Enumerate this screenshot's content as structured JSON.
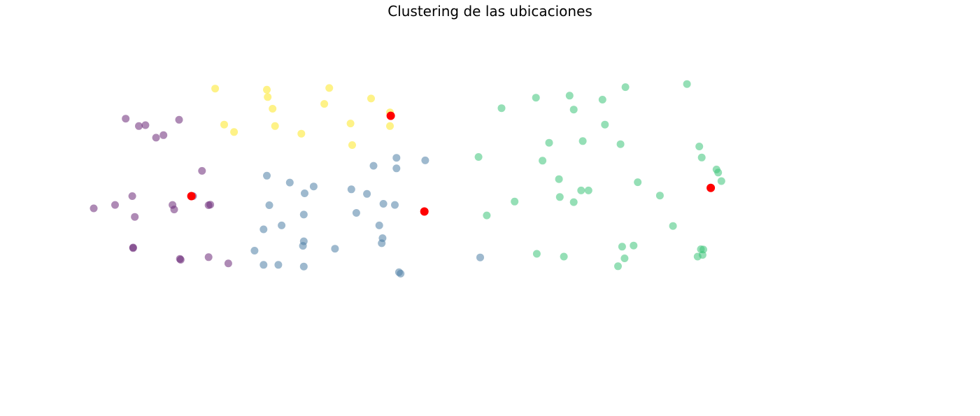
{
  "chart_data": {
    "type": "scatter",
    "title": "Clustering de las ubicaciones",
    "xlabel": "",
    "ylabel": "",
    "axes_visible": false,
    "grid": false,
    "legend": "none",
    "xlim": [
      0,
      100
    ],
    "ylim": [
      0,
      100
    ],
    "series": [
      {
        "cluster": 0,
        "color": "#6b2a78",
        "points": [
          [
            3.9,
            81.6
          ],
          [
            5.5,
            79.0
          ],
          [
            6.3,
            79.3
          ],
          [
            7.6,
            74.9
          ],
          [
            8.5,
            75.8
          ],
          [
            10.4,
            81.2
          ],
          [
            13.2,
            63.2
          ],
          [
            0,
            50.0
          ],
          [
            2.6,
            51.2
          ],
          [
            4.7,
            54.3
          ],
          [
            5.0,
            47.0
          ],
          [
            9.8,
            49.6
          ],
          [
            12.1,
            54.3
          ],
          [
            14.0,
            51.1
          ],
          [
            14.2,
            51.3
          ],
          [
            4.8,
            36.2
          ],
          [
            4.8,
            36.0
          ],
          [
            9.6,
            51.2
          ],
          [
            10.5,
            32.2
          ],
          [
            10.6,
            31.9
          ],
          [
            14.0,
            32.8
          ],
          [
            16.4,
            30.6
          ]
        ]
      },
      {
        "cluster": 1,
        "color": "#fde725",
        "points": [
          [
            14.8,
            92.2
          ],
          [
            15.9,
            79.5
          ],
          [
            17.1,
            76.9
          ],
          [
            21.1,
            91.8
          ],
          [
            21.2,
            89.2
          ],
          [
            21.8,
            85.1
          ],
          [
            22.1,
            79.0
          ],
          [
            25.3,
            76.3
          ],
          [
            28.1,
            86.8
          ],
          [
            28.7,
            92.4
          ],
          [
            31.3,
            79.9
          ],
          [
            31.5,
            72.3
          ],
          [
            33.8,
            88.7
          ],
          [
            36.1,
            83.8
          ],
          [
            36.1,
            79.0
          ]
        ]
      },
      {
        "cluster": 2,
        "color": "#4f7fa5",
        "points": [
          [
            23.9,
            59.1
          ],
          [
            26.8,
            57.7
          ],
          [
            21.1,
            61.5
          ],
          [
            25.7,
            55.3
          ],
          [
            21.4,
            51.1
          ],
          [
            25.6,
            47.8
          ],
          [
            20.7,
            42.6
          ],
          [
            22.9,
            44.0
          ],
          [
            25.6,
            38.4
          ],
          [
            25.5,
            36.8
          ],
          [
            19.6,
            35.1
          ],
          [
            20.7,
            30.1
          ],
          [
            22.5,
            30.1
          ],
          [
            25.6,
            29.5
          ],
          [
            29.4,
            35.8
          ],
          [
            31.4,
            56.7
          ],
          [
            33.3,
            55.1
          ],
          [
            32.0,
            48.4
          ],
          [
            34.1,
            65.0
          ],
          [
            35.3,
            51.6
          ],
          [
            34.8,
            44.0
          ],
          [
            35.2,
            39.5
          ],
          [
            35.1,
            37.7
          ],
          [
            36.9,
            67.8
          ],
          [
            36.9,
            64.1
          ],
          [
            36.7,
            51.2
          ],
          [
            40.4,
            66.9
          ],
          [
            37.2,
            27.5
          ],
          [
            37.4,
            27.0
          ],
          [
            47.1,
            32.7
          ]
        ]
      },
      {
        "cluster": 3,
        "color": "#3ec47a",
        "points": [
          [
            49.7,
            85.3
          ],
          [
            53.9,
            89.0
          ],
          [
            58.0,
            89.7
          ],
          [
            62.0,
            88.3
          ],
          [
            58.5,
            84.8
          ],
          [
            64.8,
            92.7
          ],
          [
            62.3,
            79.5
          ],
          [
            55.5,
            73.1
          ],
          [
            59.6,
            73.7
          ],
          [
            64.2,
            72.6
          ],
          [
            54.7,
            66.8
          ],
          [
            46.9,
            68.1
          ],
          [
            51.3,
            52.4
          ],
          [
            47.9,
            47.5
          ],
          [
            56.7,
            60.3
          ],
          [
            56.8,
            54.0
          ],
          [
            58.5,
            52.2
          ],
          [
            59.4,
            56.3
          ],
          [
            60.3,
            56.3
          ],
          [
            54.0,
            34.0
          ],
          [
            57.3,
            33.0
          ],
          [
            64.4,
            36.5
          ],
          [
            64.7,
            32.4
          ],
          [
            66.3,
            59.2
          ],
          [
            65.8,
            36.9
          ],
          [
            63.9,
            29.6
          ],
          [
            72.3,
            93.8
          ],
          [
            73.8,
            71.8
          ],
          [
            74.1,
            67.9
          ],
          [
            75.9,
            63.7
          ],
          [
            76.1,
            62.6
          ],
          [
            76.5,
            59.6
          ],
          [
            74.3,
            35.5
          ],
          [
            74.2,
            33.6
          ],
          [
            73.6,
            33.0
          ],
          [
            74.0,
            35.6
          ],
          [
            69.0,
            54.5
          ],
          [
            70.6,
            43.8
          ]
        ]
      }
    ],
    "centroids": {
      "color": "#ff0000",
      "points": [
        [
          11.9,
          54.3
        ],
        [
          36.2,
          82.6
        ],
        [
          40.3,
          48.9
        ],
        [
          75.2,
          57.2
        ]
      ]
    }
  }
}
